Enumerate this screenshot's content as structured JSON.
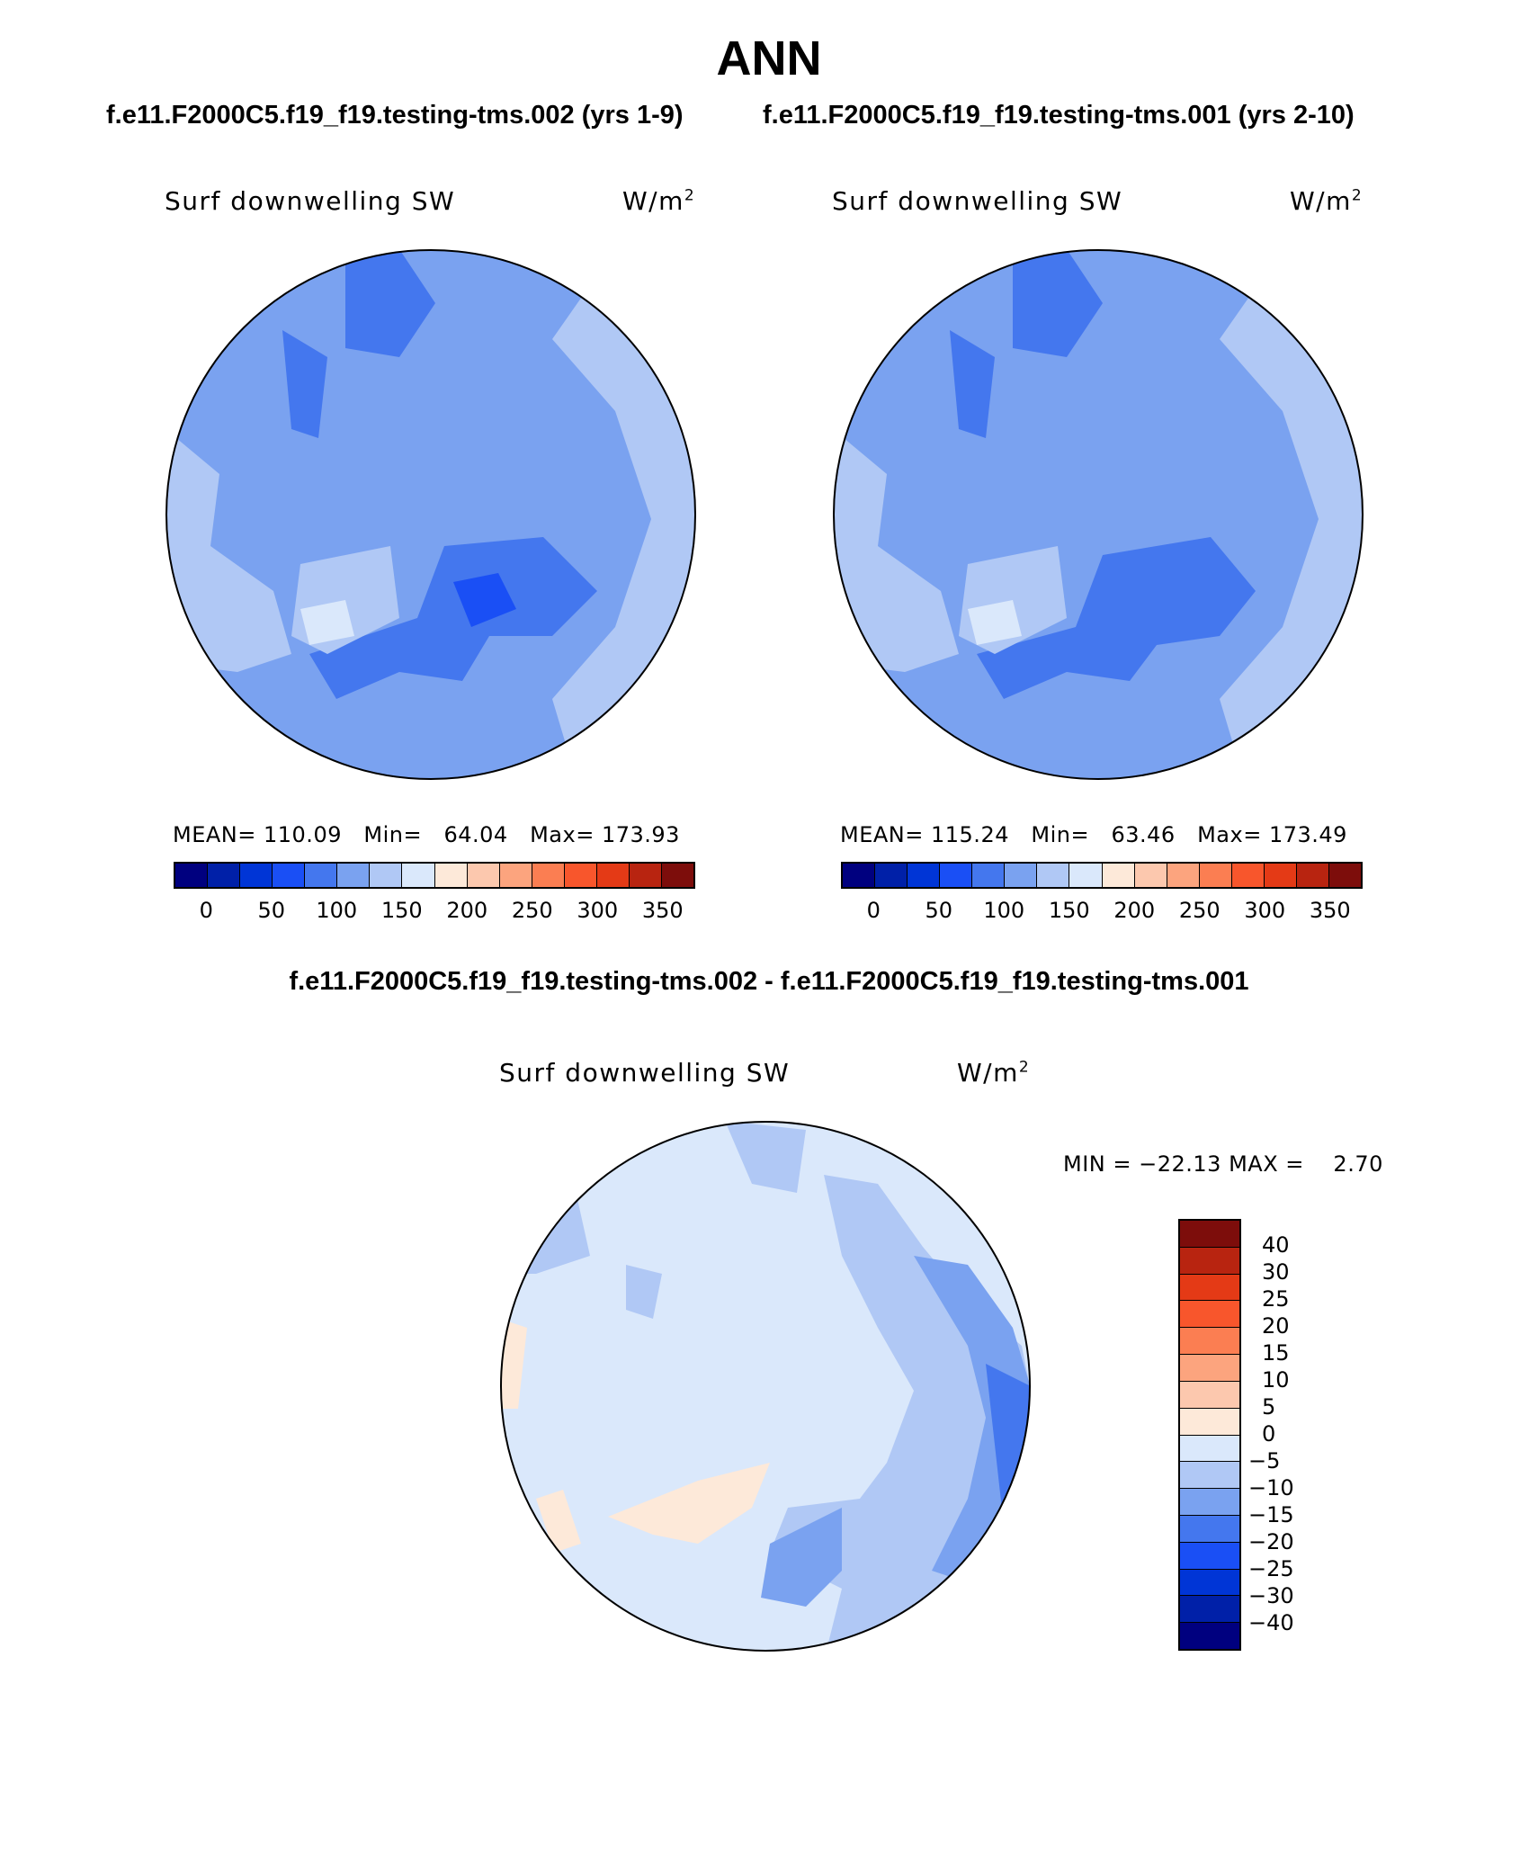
{
  "title": "ANN",
  "case1_title": "f.e11.F2000C5.f19_f19.testing-tms.002 (yrs 1-9)",
  "case2_title": "f.e11.F2000C5.f19_f19.testing-tms.001 (yrs 2-10)",
  "diff_title": "f.e11.F2000C5.f19_f19.testing-tms.002 - f.e11.F2000C5.f19_f19.testing-tms.001",
  "panels": [
    {
      "variable": "Surf downwelling SW",
      "units_base": "W/m",
      "units_exp": "2",
      "mean_label": "MEAN=",
      "mean": "110.09",
      "min_label": "Min=",
      "min": "64.04",
      "max_label": "Max=",
      "max": "173.93"
    },
    {
      "variable": "Surf downwelling SW",
      "units_base": "W/m",
      "units_exp": "2",
      "mean_label": "MEAN=",
      "mean": "115.24",
      "min_label": "Min=",
      "min": "63.46",
      "max_label": "Max=",
      "max": "173.49"
    }
  ],
  "diff_panel": {
    "variable": "Surf downwelling SW",
    "units_base": "W/m",
    "units_exp": "2",
    "min_label": "MIN =",
    "min": "−22.13",
    "max_label": "MAX =",
    "max": "2.70"
  },
  "colorbar_abs": {
    "colors": [
      "#00007f",
      "#0020a8",
      "#0035d6",
      "#1a4ff5",
      "#4477ee",
      "#7aa2f0",
      "#b0c8f5",
      "#dae8fb",
      "#fde9d9",
      "#fcc8ae",
      "#fca47e",
      "#fb7e52",
      "#f8562c",
      "#e43a16",
      "#b82410",
      "#7d0d0b"
    ],
    "tick_labels": [
      "0",
      "50",
      "100",
      "150",
      "200",
      "250",
      "300",
      "350"
    ]
  },
  "colorbar_diff": {
    "colors_top_to_bottom": [
      "#7d0d0b",
      "#b82410",
      "#e43a16",
      "#f8562c",
      "#fb7e52",
      "#fca47e",
      "#fcc8ae",
      "#fde9d9",
      "#dae8fb",
      "#b0c8f5",
      "#7aa2f0",
      "#4477ee",
      "#1a4ff5",
      "#0035d6",
      "#0020a8",
      "#00007f"
    ],
    "tick_labels_top_to_bottom": [
      "40",
      "30",
      "25",
      "20",
      "15",
      "10",
      "5",
      "0",
      "−5",
      "−10",
      "−15",
      "−20",
      "−25",
      "−30",
      "−40"
    ]
  }
}
